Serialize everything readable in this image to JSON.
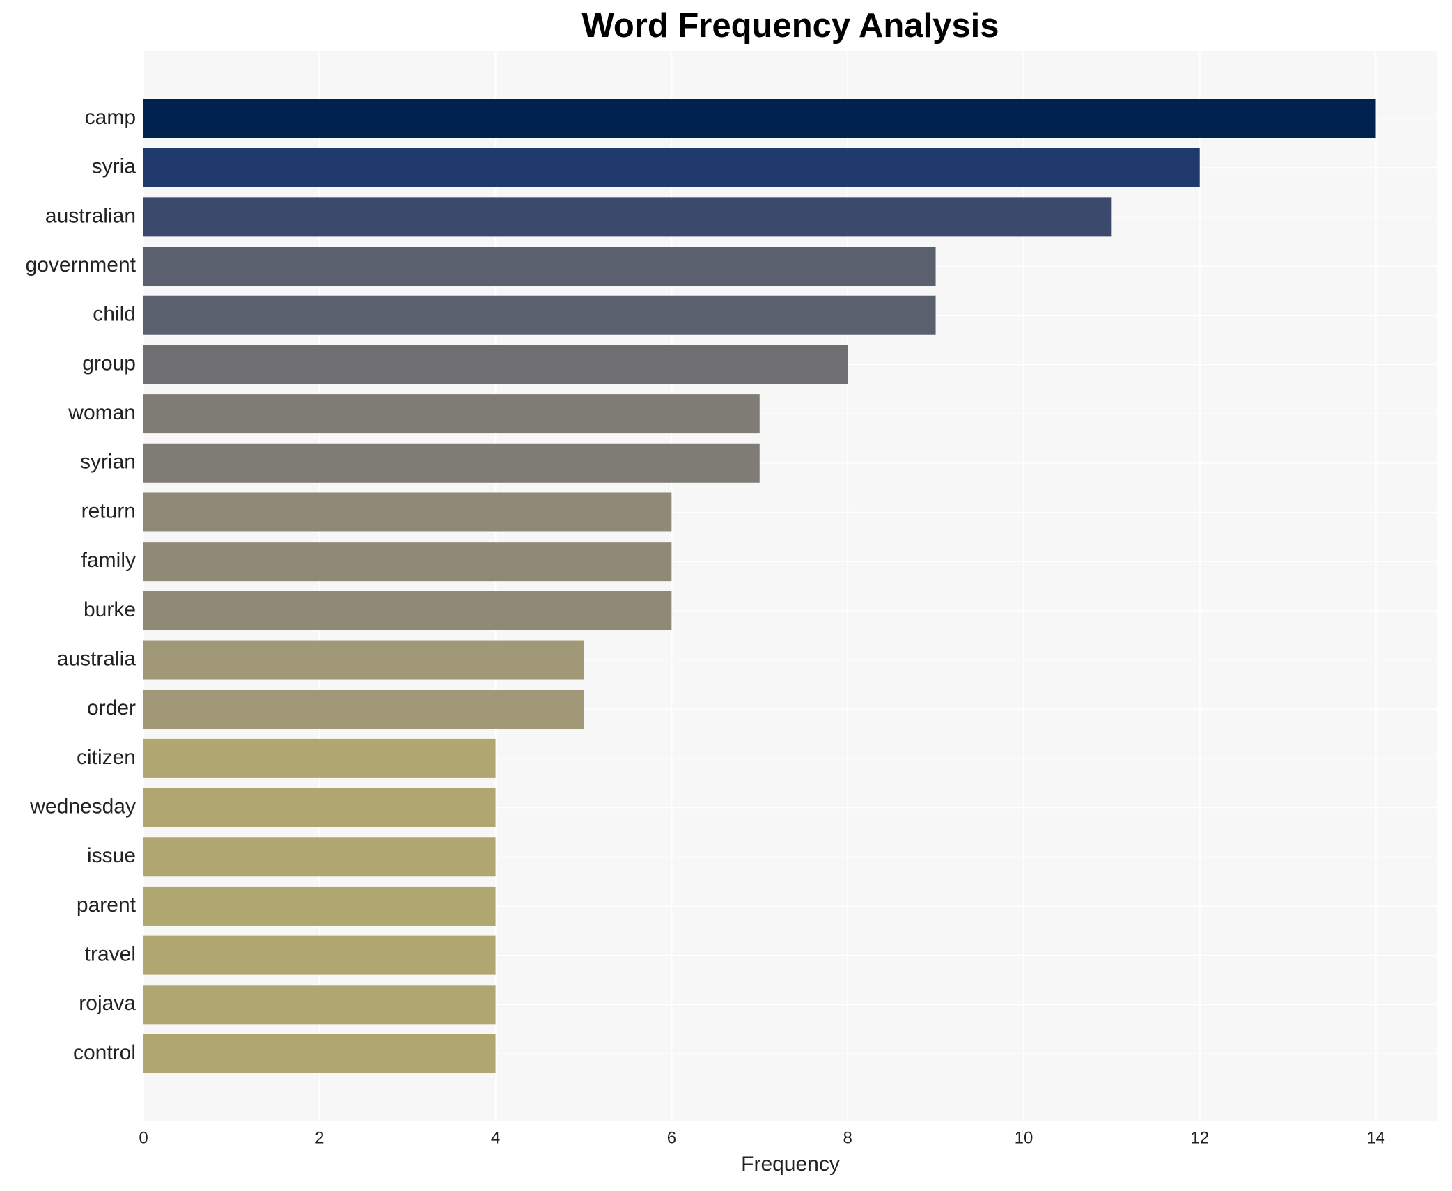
{
  "chart_data": {
    "type": "bar",
    "orientation": "horizontal",
    "title": "Word Frequency Analysis",
    "x_label": "Frequency",
    "categories": [
      "camp",
      "syria",
      "australian",
      "government",
      "child",
      "group",
      "woman",
      "syrian",
      "return",
      "family",
      "burke",
      "australia",
      "order",
      "citizen",
      "wednesday",
      "issue",
      "parent",
      "travel",
      "rojava",
      "control"
    ],
    "values": [
      14,
      12,
      11,
      9,
      9,
      8,
      7,
      7,
      6,
      6,
      6,
      5,
      5,
      4,
      4,
      4,
      4,
      4,
      4,
      4
    ],
    "colors": [
      "#00224e",
      "#213a6e",
      "#3b496c",
      "#5b606e",
      "#5b606e",
      "#6f6f72",
      "#7f7c75",
      "#7f7c75",
      "#8f8a78",
      "#8f8a78",
      "#8f8a78",
      "#a19877",
      "#a19877",
      "#b0a66f",
      "#b0a66f",
      "#b0a66f",
      "#b0a66f",
      "#b0a66f",
      "#b0a66f",
      "#b0a66f"
    ],
    "xlim": [
      0,
      14.7
    ],
    "xticks": [
      0,
      2,
      4,
      6,
      8,
      10,
      12,
      14
    ],
    "grid": true
  }
}
